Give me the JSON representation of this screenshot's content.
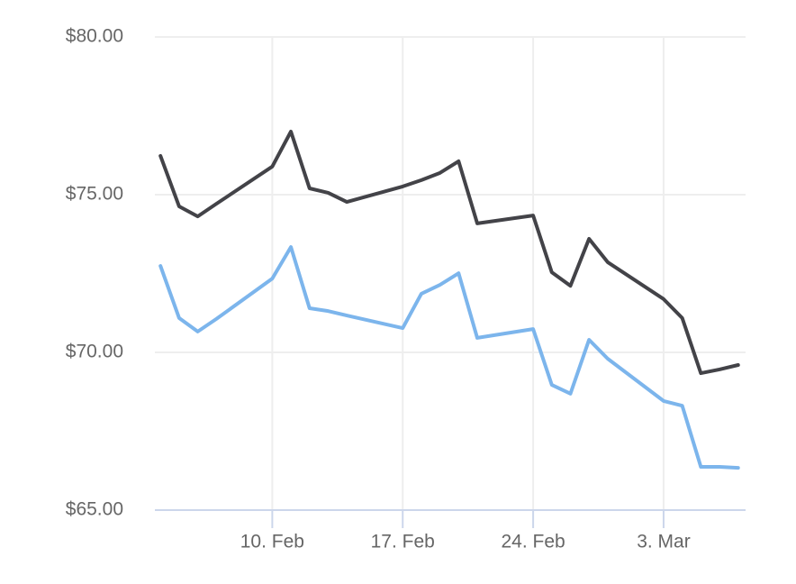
{
  "chart_data": {
    "type": "line",
    "x": [
      4,
      5,
      6,
      7,
      10,
      11,
      12,
      13,
      14,
      17,
      18,
      19,
      20,
      21,
      24,
      25,
      26,
      27,
      28,
      31,
      32,
      33,
      34,
      35
    ],
    "series": [
      {
        "color": "#434348",
        "values": [
          76.23,
          74.63,
          74.31,
          74.71,
          75.89,
          77.0,
          75.2,
          75.06,
          74.77,
          75.26,
          75.46,
          75.69,
          76.06,
          74.09,
          74.34,
          72.54,
          72.11,
          73.6,
          72.86,
          71.69,
          71.09,
          69.34,
          69.46,
          69.6
        ]
      },
      {
        "color": "#7cb5ec",
        "values": [
          72.74,
          71.09,
          70.66,
          71.06,
          72.34,
          73.34,
          71.4,
          71.31,
          71.17,
          70.77,
          71.86,
          72.14,
          72.51,
          70.46,
          70.74,
          68.97,
          68.69,
          70.4,
          69.8,
          68.46,
          68.31,
          66.37,
          66.37,
          66.34
        ]
      }
    ],
    "xlim": [
      3.7,
      35.4
    ],
    "xticks": [
      {
        "value": 10,
        "label": "10. Feb"
      },
      {
        "value": 17,
        "label": "17. Feb"
      },
      {
        "value": 24,
        "label": "24. Feb"
      },
      {
        "value": 31,
        "label": "3. Mar"
      }
    ],
    "ylim": [
      65,
      80
    ],
    "yticks": [
      {
        "value": 65,
        "label": "$65.00"
      },
      {
        "value": 70,
        "label": "$70.00"
      },
      {
        "value": 75,
        "label": "$75.00"
      },
      {
        "value": 80,
        "label": "$80.00"
      }
    ],
    "grid": true
  }
}
